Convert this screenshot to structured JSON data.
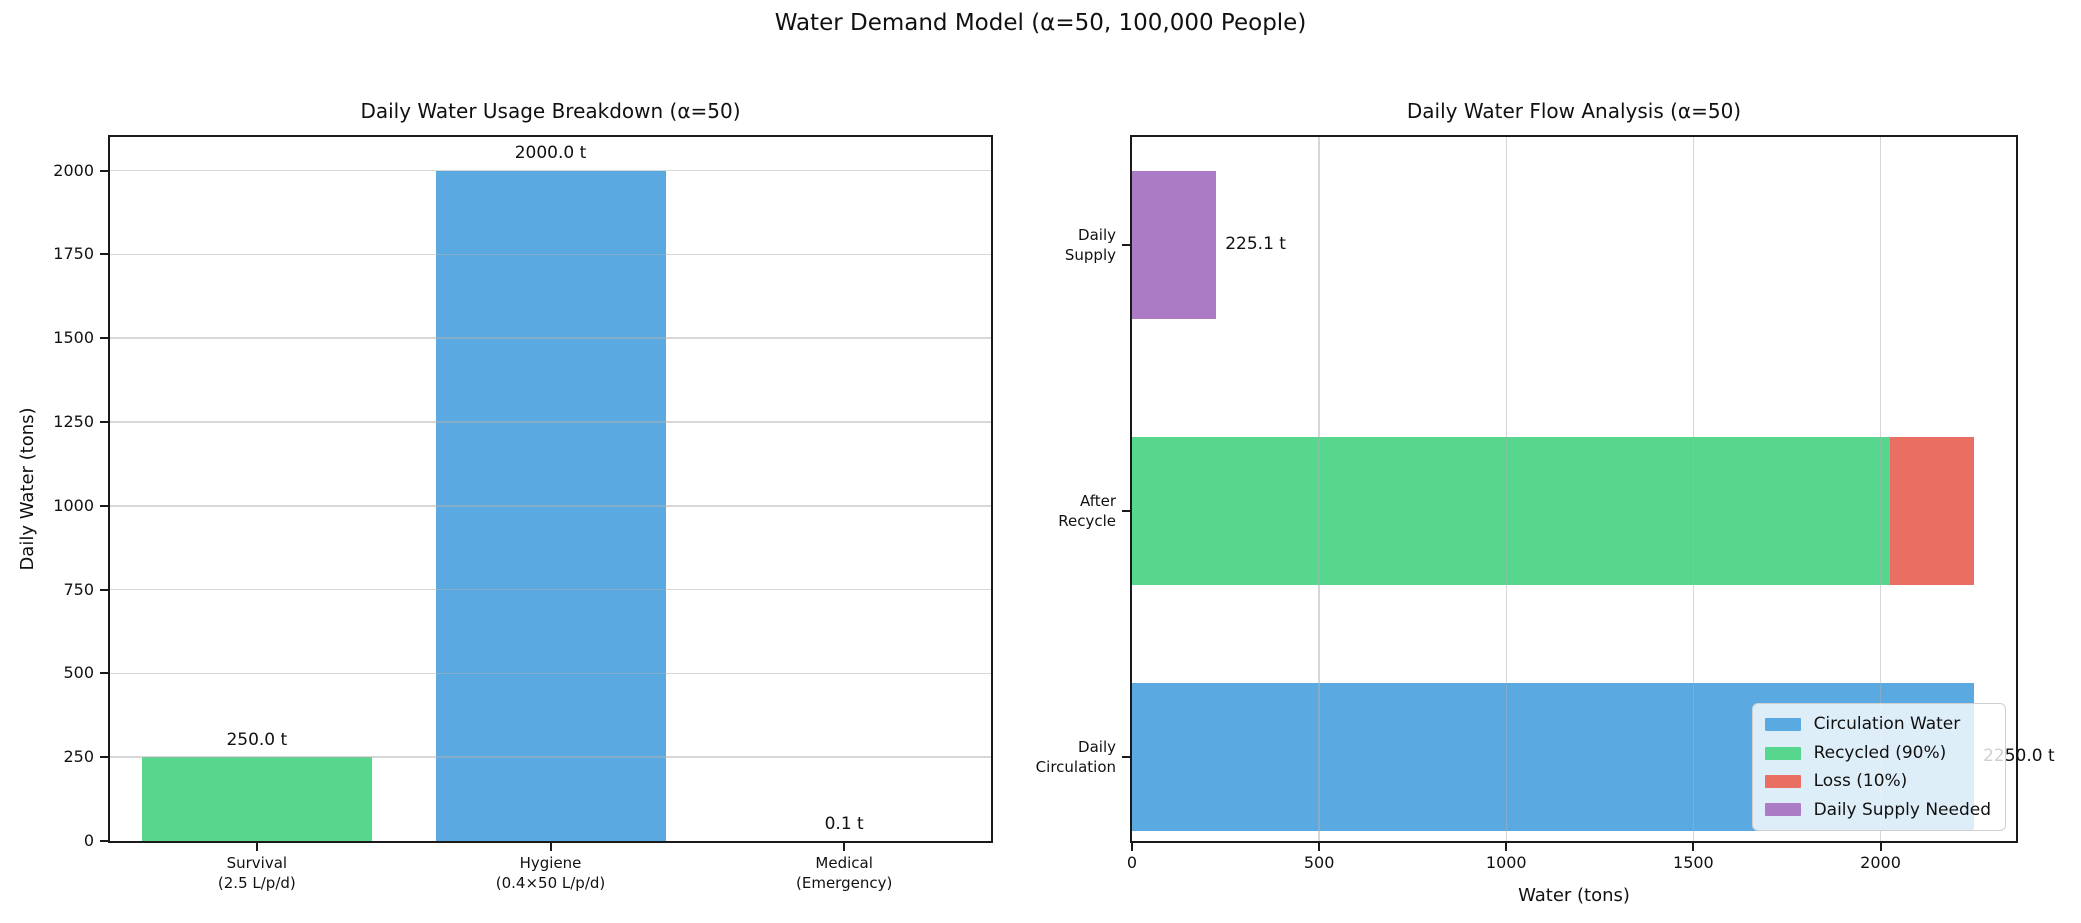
{
  "figure": {
    "suptitle": "Water Demand Model (α=50, 100,000 People)",
    "background": "#ffffff",
    "spine_color": "#1a1a1a",
    "grid_color": "#b0b0b0"
  },
  "chart_data": [
    {
      "type": "bar",
      "orientation": "vertical",
      "title": "Daily Water Usage Breakdown (α=50)",
      "xlabel": "",
      "ylabel": "Daily Water (tons)",
      "categories": [
        "Survival\n(2.5 L/p/d)",
        "Hygiene\n(0.4×50 L/p/d)",
        "Medical\n(Emergency)"
      ],
      "values": [
        250.0,
        2000.0,
        0.1
      ],
      "bar_labels": [
        "250.0 t",
        "2000.0 t",
        "0.1 t"
      ],
      "bar_colors": [
        "#57d68d",
        "#5aa9e0",
        "#e86f62"
      ],
      "yticks": [
        0,
        250,
        500,
        750,
        1000,
        1250,
        1500,
        1750,
        2000
      ],
      "ylim": [
        0,
        2100
      ],
      "grid": "horizontal"
    },
    {
      "type": "bar",
      "orientation": "horizontal",
      "title": "Daily Water Flow Analysis (α=50)",
      "xlabel": "Water (tons)",
      "ylabel": "",
      "xticks": [
        0,
        500,
        1000,
        1500,
        2000
      ],
      "xlim": [
        0,
        2362
      ],
      "grid": "vertical",
      "rows": [
        {
          "category": "Daily\nSupply",
          "annotation": "225.1 t",
          "segments": [
            {
              "series": "Daily Supply Needed",
              "value": 225.1,
              "color": "#ac7bc6"
            }
          ]
        },
        {
          "category": "After\nRecycle",
          "annotation": "",
          "segments": [
            {
              "series": "Recycled (90%)",
              "value": 2025.0,
              "color": "#57d68d"
            },
            {
              "series": "Loss (10%)",
              "value": 225.0,
              "color": "#e86f62"
            }
          ]
        },
        {
          "category": "Daily\nCirculation",
          "annotation": "2250.0 t",
          "segments": [
            {
              "series": "Circulation Water",
              "value": 2250.0,
              "color": "#5aa9e0"
            }
          ]
        }
      ],
      "legend": {
        "position": "lower right",
        "entries": [
          {
            "label": "Circulation Water",
            "color": "#5aa9e0"
          },
          {
            "label": "Recycled (90%)",
            "color": "#57d68d"
          },
          {
            "label": "Loss (10%)",
            "color": "#e86f62"
          },
          {
            "label": "Daily Supply Needed",
            "color": "#ac7bc6"
          }
        ]
      }
    }
  ]
}
